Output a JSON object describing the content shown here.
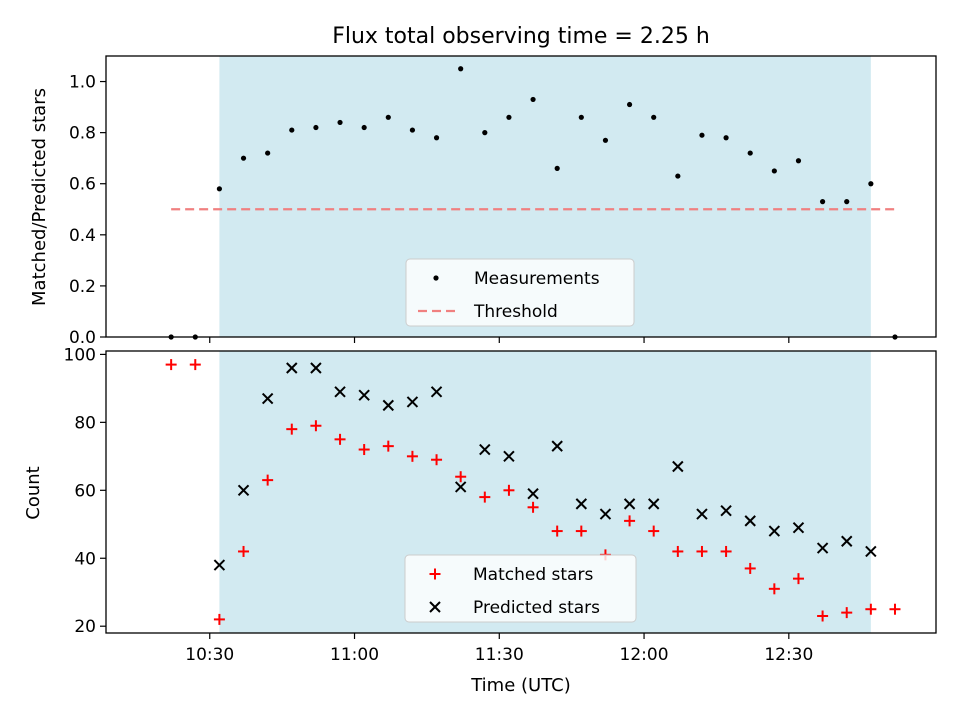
{
  "chart_data": [
    {
      "type": "scatter",
      "title": "Flux total observing time = 2.25 h",
      "xlabel": "",
      "ylabel": "Matched/Predicted stars",
      "ylim": [
        0,
        1.1
      ],
      "yticks": [
        "0.0",
        "0.2",
        "0.4",
        "0.6",
        "0.8",
        "1.0"
      ],
      "shaded_interval": [
        "10:32",
        "12:47"
      ],
      "shade_color": "#add8e6",
      "legend": {
        "position": "lower-center",
        "entries": [
          "Measurements",
          "Threshold"
        ]
      },
      "series": [
        {
          "name": "Measurements",
          "marker": "dot",
          "color": "#000000",
          "x": [
            "10:22",
            "10:27",
            "10:32",
            "10:37",
            "10:42",
            "10:47",
            "10:52",
            "10:57",
            "11:02",
            "11:07",
            "11:12",
            "11:17",
            "11:22",
            "11:27",
            "11:32",
            "11:37",
            "11:42",
            "11:47",
            "11:52",
            "11:57",
            "12:02",
            "12:07",
            "12:12",
            "12:17",
            "12:22",
            "12:27",
            "12:32",
            "12:37",
            "12:42",
            "12:47",
            "12:52"
          ],
          "y": [
            0.0,
            0.0,
            0.58,
            0.7,
            0.72,
            0.81,
            0.82,
            0.84,
            0.82,
            0.86,
            0.81,
            0.78,
            1.05,
            0.8,
            0.86,
            0.93,
            0.66,
            0.86,
            0.77,
            0.91,
            0.86,
            0.63,
            0.79,
            0.78,
            0.72,
            0.65,
            0.69,
            0.53,
            0.53,
            0.6,
            0.0
          ]
        },
        {
          "name": "Threshold",
          "style": "dashed",
          "color": "#f08080",
          "x": [
            "10:22",
            "12:52"
          ],
          "y": [
            0.5,
            0.5
          ]
        }
      ]
    },
    {
      "type": "scatter",
      "xlabel": "Time (UTC)",
      "ylabel": "Count",
      "ylim": [
        18,
        101
      ],
      "yticks": [
        "20",
        "40",
        "60",
        "80",
        "100"
      ],
      "xticks": [
        "10:30",
        "11:00",
        "11:30",
        "12:00",
        "12:30"
      ],
      "shaded_interval": [
        "10:32",
        "12:47"
      ],
      "shade_color": "#add8e6",
      "legend": {
        "position": "lower-center",
        "entries": [
          "Matched stars",
          "Predicted stars"
        ]
      },
      "series": [
        {
          "name": "Matched stars",
          "marker": "plus",
          "color": "#ff0000",
          "x": [
            "10:22",
            "10:27",
            "10:32",
            "10:37",
            "10:42",
            "10:47",
            "10:52",
            "10:57",
            "11:02",
            "11:07",
            "11:12",
            "11:17",
            "11:22",
            "11:27",
            "11:32",
            "11:37",
            "11:42",
            "11:47",
            "11:52",
            "11:57",
            "12:02",
            "12:07",
            "12:12",
            "12:17",
            "12:22",
            "12:27",
            "12:32",
            "12:37",
            "12:42",
            "12:47",
            "12:52"
          ],
          "y": [
            97,
            97,
            22,
            42,
            63,
            78,
            79,
            75,
            72,
            73,
            70,
            69,
            64,
            58,
            60,
            55,
            48,
            48,
            41,
            51,
            48,
            42,
            42,
            42,
            37,
            31,
            34,
            23,
            24,
            25,
            25
          ]
        },
        {
          "name": "Predicted stars",
          "marker": "x",
          "color": "#000000",
          "x": [
            "10:32",
            "10:37",
            "10:42",
            "10:47",
            "10:52",
            "10:57",
            "11:02",
            "11:07",
            "11:12",
            "11:17",
            "11:22",
            "11:27",
            "11:32",
            "11:37",
            "11:42",
            "11:47",
            "11:52",
            "11:57",
            "12:02",
            "12:07",
            "12:12",
            "12:17",
            "12:22",
            "12:27",
            "12:32",
            "12:37",
            "12:42",
            "12:47"
          ],
          "y": [
            38,
            60,
            87,
            96,
            96,
            89,
            88,
            85,
            86,
            89,
            61,
            72,
            70,
            59,
            73,
            56,
            53,
            56,
            56,
            67,
            53,
            54,
            51,
            48,
            49,
            43,
            45,
            42
          ]
        }
      ]
    }
  ]
}
